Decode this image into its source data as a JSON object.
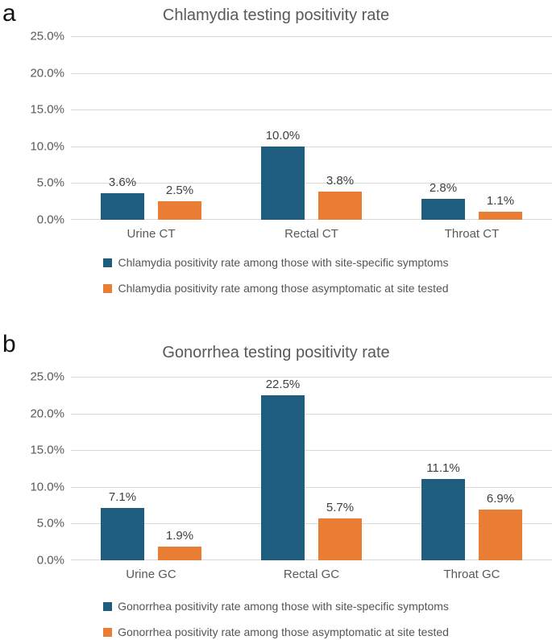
{
  "figure": {
    "background": "#ffffff"
  },
  "colors": {
    "series_symptomatic": "#1f5d7e",
    "series_asymptomatic": "#e87d33",
    "title_text": "#595959",
    "axis_tick_text": "#595959",
    "data_label_text": "#404040",
    "gridline": "#d9d9d9",
    "legend_text": "#555555",
    "panel_label_text": "#111111"
  },
  "chart_data": [
    {
      "type": "bar",
      "panel_label": "a",
      "title": "Chlamydia testing positivity rate",
      "categories": [
        "Urine CT",
        "Rectal CT",
        "Throat CT"
      ],
      "series": [
        {
          "name": "Chlamydia positivity rate among those with site-specific symptoms",
          "color": "#1f5d7e",
          "values": [
            3.6,
            10.0,
            2.8
          ],
          "data_labels": [
            "3.6%",
            "10.0%",
            "2.8%"
          ]
        },
        {
          "name": "Chlamydia positivity rate among those asymptomatic at site tested",
          "color": "#e87d33",
          "values": [
            2.5,
            3.8,
            1.1
          ],
          "data_labels": [
            "2.5%",
            "3.8%",
            "1.1%"
          ]
        }
      ],
      "xlabel": "",
      "ylabel": "",
      "ylim": [
        0,
        25
      ],
      "ytick_labels": [
        "25.0%",
        "20.0%",
        "15.0%",
        "10.0%",
        "5.0%",
        "0.0%"
      ],
      "grid": true,
      "legend_position": "bottom"
    },
    {
      "type": "bar",
      "panel_label": "b",
      "title": "Gonorrhea testing positivity rate",
      "categories": [
        "Urine GC",
        "Rectal GC",
        "Throat GC"
      ],
      "series": [
        {
          "name": "Gonorrhea positivity rate among those with site-specific symptoms",
          "color": "#1f5d7e",
          "values": [
            7.1,
            22.5,
            11.1
          ],
          "data_labels": [
            "7.1%",
            "22.5%",
            "11.1%"
          ]
        },
        {
          "name": "Gonorrhea positivity rate among those asymptomatic at site tested",
          "color": "#e87d33",
          "values": [
            1.9,
            5.7,
            6.9
          ],
          "data_labels": [
            "1.9%",
            "5.7%",
            "6.9%"
          ]
        }
      ],
      "xlabel": "",
      "ylabel": "",
      "ylim": [
        0,
        25
      ],
      "ytick_labels": [
        "25.0%",
        "20.0%",
        "15.0%",
        "10.0%",
        "5.0%",
        "0.0%"
      ],
      "grid": true,
      "legend_position": "bottom"
    }
  ]
}
